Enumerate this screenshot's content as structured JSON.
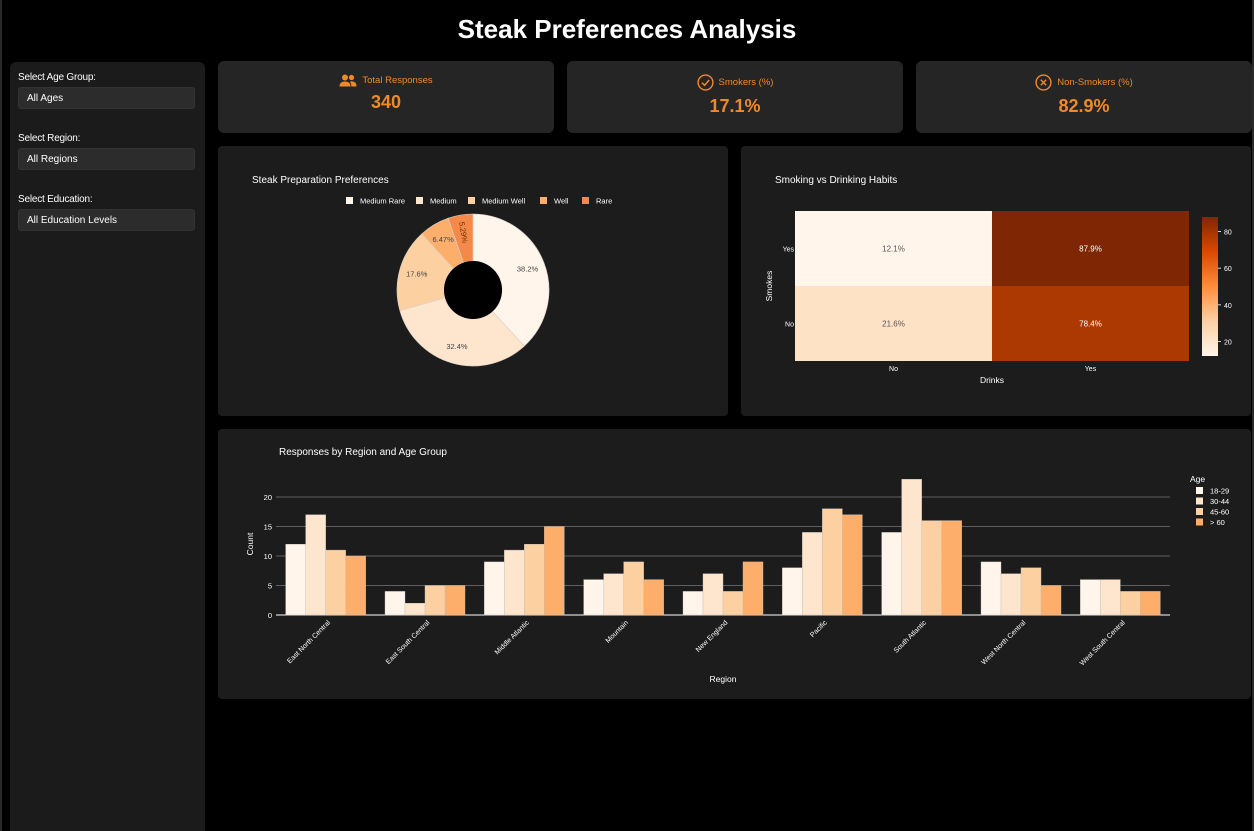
{
  "header": {
    "title": "Steak Preferences Analysis"
  },
  "filters": [
    {
      "label": "Select Age Group:",
      "value": "All Ages"
    },
    {
      "label": "Select Region:",
      "value": "All Regions"
    },
    {
      "label": "Select Education:",
      "value": "All Education Levels"
    }
  ],
  "kpis": [
    {
      "label": "Total Responses",
      "value": "340",
      "icon": "users-icon"
    },
    {
      "label": "Smokers (%)",
      "value": "17.1%",
      "icon": "check-circle-icon"
    },
    {
      "label": "Non-Smokers (%)",
      "value": "82.9%",
      "icon": "x-circle-icon"
    }
  ],
  "colors": {
    "accent": "#f08a28",
    "panel": "#1c1c1c",
    "kpi_panel": "#252525"
  },
  "chart_data": [
    {
      "type": "pie",
      "title": "Steak Preparation Preferences",
      "hole": true,
      "labels": [
        "Medium Rare",
        "Medium",
        "Medium Well",
        "Well",
        "Rare"
      ],
      "values": [
        38.2,
        32.4,
        17.6,
        6.47,
        5.29
      ],
      "slice_labels": [
        "38.2%",
        "32.4%",
        "17.6%",
        "6.47%",
        "5.29%"
      ],
      "colors": [
        "#fff5eb",
        "#fee5cd",
        "#fdd0a2",
        "#fdae6b",
        "#f5894a"
      ],
      "legend": "top"
    },
    {
      "type": "heatmap",
      "title": "Smoking vs Drinking Habits",
      "xlabel": "Drinks",
      "ylabel": "Smokes",
      "x": [
        "No",
        "Yes"
      ],
      "y": [
        "Yes",
        "No"
      ],
      "z": [
        [
          12.1,
          87.9
        ],
        [
          21.6,
          78.4
        ]
      ],
      "text": [
        [
          "12.1%",
          "87.9%"
        ],
        [
          "21.6%",
          "78.4%"
        ]
      ],
      "colorbar_ticks": [
        "80",
        "60",
        "40",
        "20"
      ],
      "colorbar_tick_values": [
        80,
        60,
        40,
        20
      ],
      "zrange": [
        12.1,
        87.9
      ]
    },
    {
      "type": "bar",
      "title": "Responses by Region and Age Group",
      "xlabel": "Region",
      "ylabel": "Count",
      "legend_title": "Age",
      "categories": [
        "East North Central",
        "East South Central",
        "Middle Atlantic",
        "Mountain",
        "New England",
        "Pacific",
        "South Atlantic",
        "West North Central",
        "West South Central"
      ],
      "series": [
        {
          "name": "18-29",
          "color": "#fff5eb",
          "values": [
            12,
            4,
            9,
            6,
            4,
            8,
            14,
            9,
            6
          ]
        },
        {
          "name": "30-44",
          "color": "#fee5cd",
          "values": [
            17,
            2,
            11,
            7,
            7,
            14,
            23,
            7,
            6
          ]
        },
        {
          "name": "45-60",
          "color": "#fdd0a2",
          "values": [
            11,
            5,
            12,
            9,
            4,
            18,
            16,
            8,
            4
          ]
        },
        {
          "name": "> 60",
          "color": "#fdae6b",
          "values": [
            10,
            5,
            15,
            6,
            9,
            17,
            16,
            5,
            4
          ]
        }
      ],
      "yticks": [
        0,
        5,
        10,
        15,
        20
      ],
      "ylim": [
        0,
        24
      ],
      "legend": "right"
    }
  ]
}
